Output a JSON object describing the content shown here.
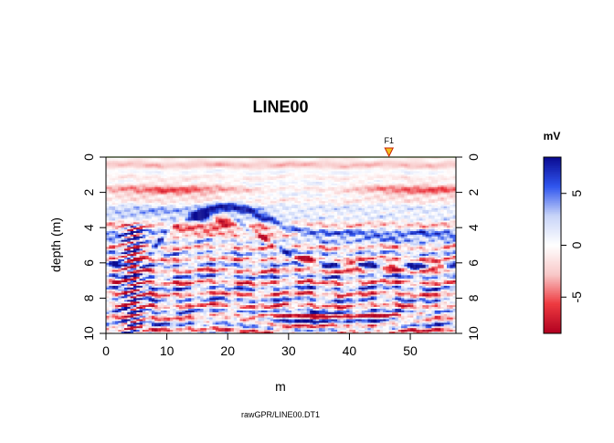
{
  "chart_data": {
    "type": "heatmap",
    "title": "LINE00",
    "xlabel": "m",
    "ylabel": "depth (m)",
    "caption": "rawGPR/LINE00.DT1",
    "xlim": [
      0,
      57.5
    ],
    "ylim": [
      10,
      0
    ],
    "x_ticks": [
      "0",
      "10",
      "20",
      "30",
      "40",
      "50"
    ],
    "y_ticks": [
      "0",
      "2",
      "4",
      "6",
      "8",
      "10"
    ],
    "marker": {
      "label": "F1",
      "x": 46.5,
      "marker_color": "#f0c020"
    },
    "surface_line_color": "#99dd44",
    "colorbar": {
      "title": "mV",
      "min": -8.5,
      "max": 8.5,
      "ticks": [
        "5",
        "0",
        "-5"
      ],
      "colors": [
        "#0a0a90",
        "#2f55ee",
        "#c8d4f8",
        "#ffffff",
        "#f8c8c8",
        "#ee3a40",
        "#b00020"
      ]
    }
  }
}
